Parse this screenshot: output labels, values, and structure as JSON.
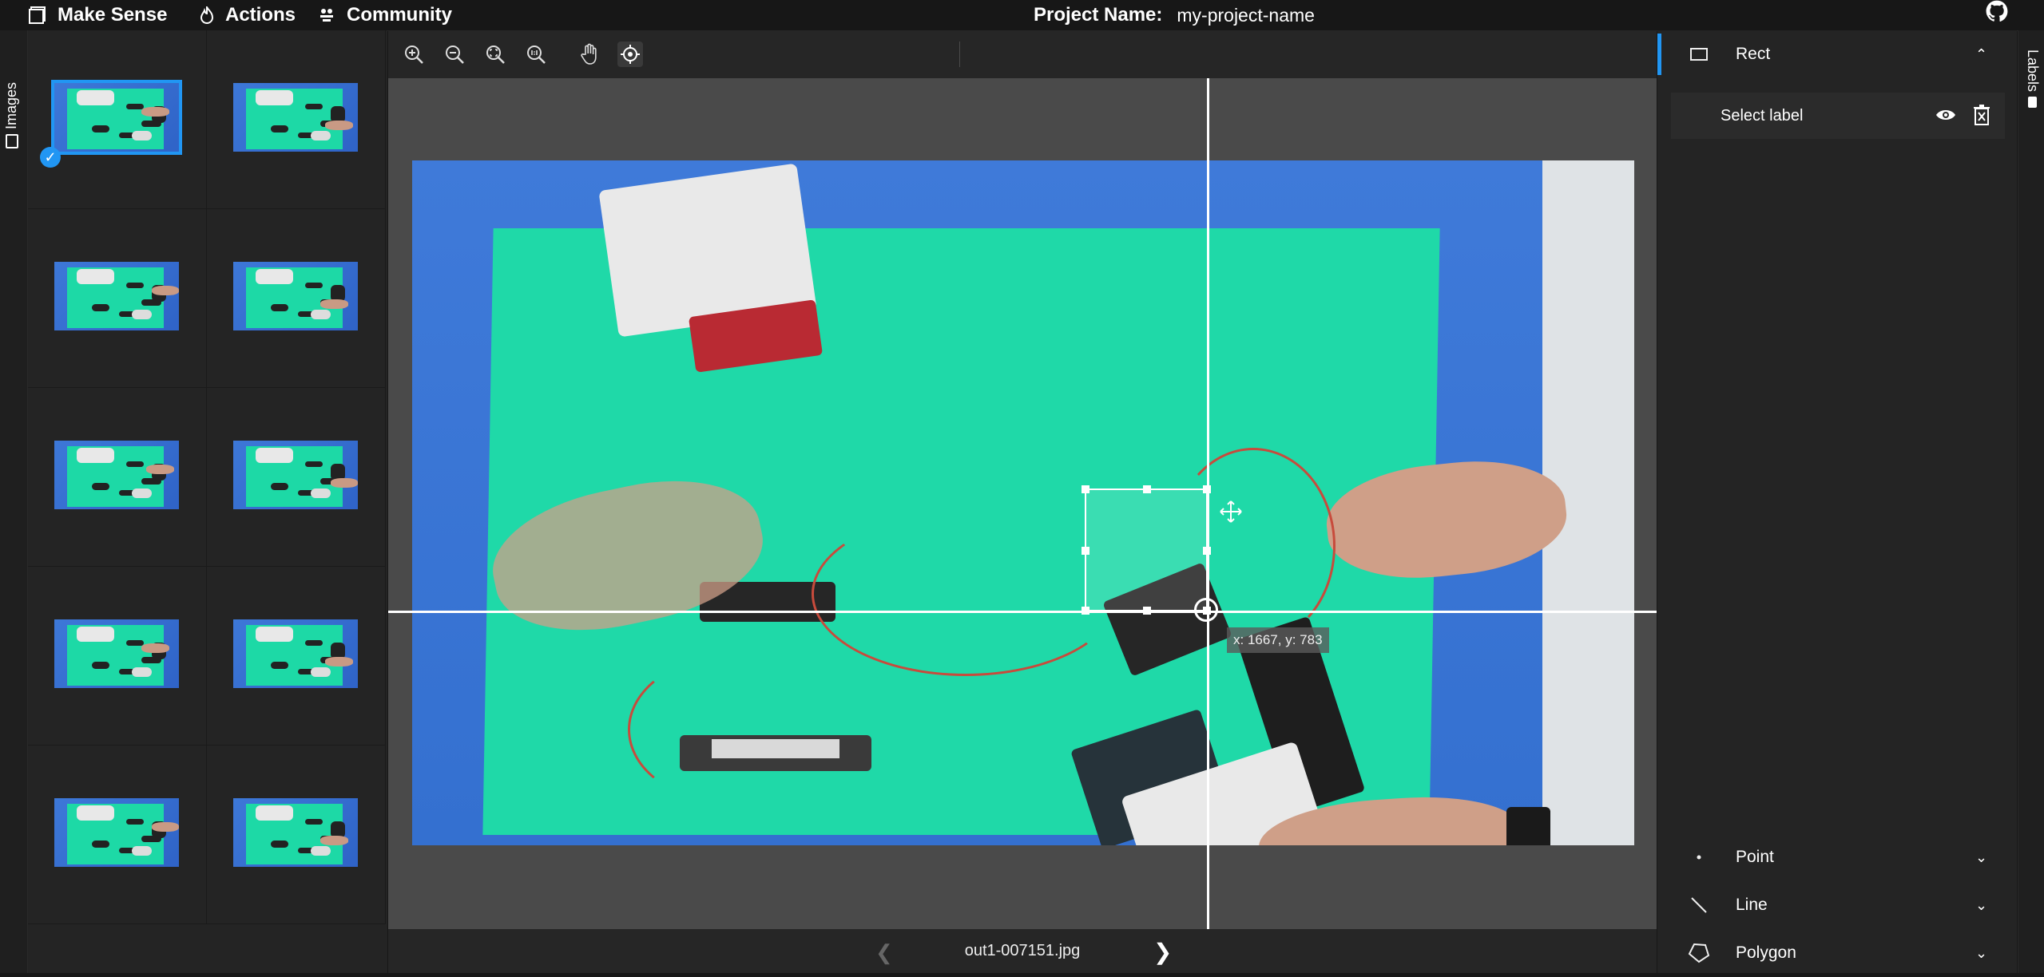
{
  "topbar": {
    "brand": "Make Sense",
    "menu": [
      {
        "label": "Actions",
        "icon": "fire-icon"
      },
      {
        "label": "Community",
        "icon": "people-icon"
      }
    ],
    "project_label": "Project Name:",
    "project_name": "my-project-name",
    "github_icon": "github-icon"
  },
  "left_tab": {
    "label": "Images"
  },
  "right_tab": {
    "label": "Labels"
  },
  "thumbnails": {
    "count": 10,
    "selected_index": 0
  },
  "toolbar": {
    "tools": [
      "zoom-in-icon",
      "zoom-out-icon",
      "zoom-fit-icon",
      "zoom-actual-icon",
      "pan-hand-icon",
      "crosshair-icon"
    ],
    "selected_tool": "crosshair-icon"
  },
  "editor": {
    "cursor_coords": "x: 1667, y: 783",
    "filename": "out1-007151.jpg"
  },
  "labels_panel": {
    "sections": [
      {
        "name": "Rect",
        "expanded": true
      },
      {
        "name": "Point",
        "expanded": false
      },
      {
        "name": "Line",
        "expanded": false
      },
      {
        "name": "Polygon",
        "expanded": false
      }
    ],
    "rect_label_placeholder": "Select label"
  },
  "colors": {
    "accent": "#2196f3",
    "panel": "#242424",
    "canvas": "#4a4a4a",
    "topbar": "#171717"
  }
}
